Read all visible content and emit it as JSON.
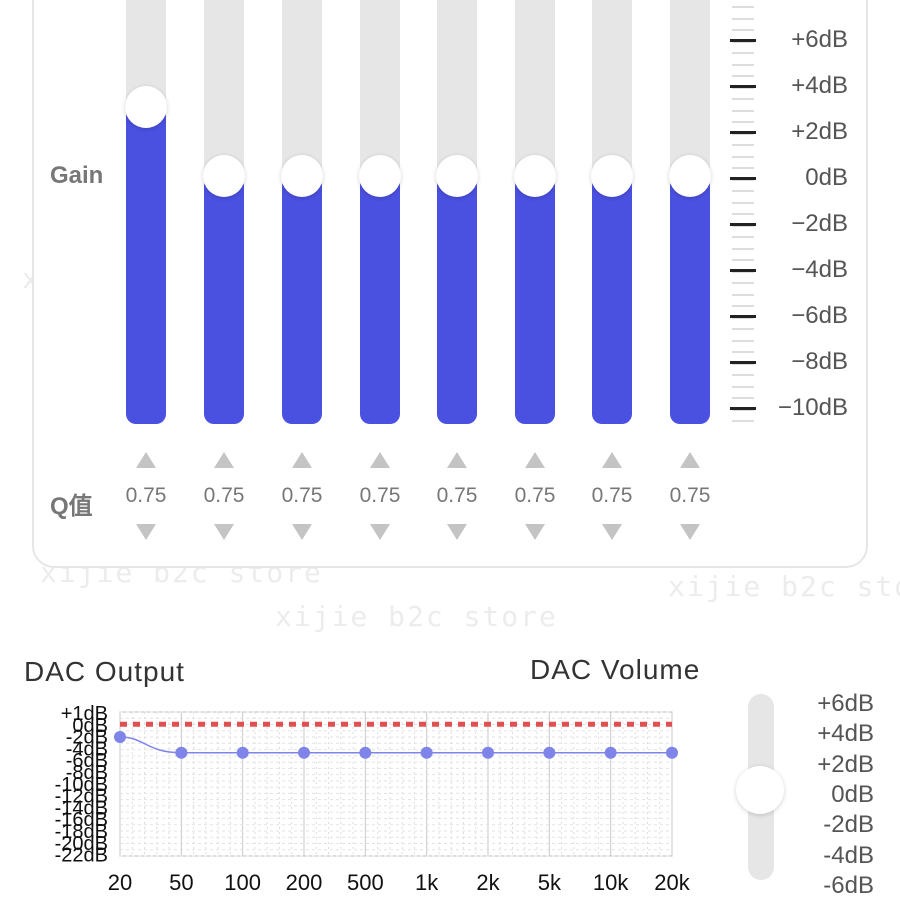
{
  "equalizer": {
    "gain_label": "Gain",
    "q_label": "Q值",
    "scale_labels": [
      "+6dB",
      "+4dB",
      "+2dB",
      "0dB",
      "−2dB",
      "−4dB",
      "−6dB",
      "−8dB",
      "−10dB"
    ],
    "bands": [
      {
        "gain_db": 3,
        "q": "0.75"
      },
      {
        "gain_db": 0,
        "q": "0.75"
      },
      {
        "gain_db": 0,
        "q": "0.75"
      },
      {
        "gain_db": 0,
        "q": "0.75"
      },
      {
        "gain_db": 0,
        "q": "0.75"
      },
      {
        "gain_db": 0,
        "q": "0.75"
      },
      {
        "gain_db": 0,
        "q": "0.75"
      },
      {
        "gain_db": 0,
        "q": "0.75"
      }
    ],
    "accent_color": "#4a50e0"
  },
  "dac_output": {
    "title": "DAC Output",
    "y_labels": [
      "+1dB",
      "0dB",
      "-2dB",
      "-4dB",
      "-6dB",
      "-8dB",
      "-10dB",
      "-12dB",
      "-14dB",
      "-16dB",
      "-18dB",
      "-20dB",
      "-22dB"
    ],
    "x_labels": [
      "20",
      "50",
      "100",
      "200",
      "500",
      "1k",
      "2k",
      "5k",
      "10k",
      "20k"
    ]
  },
  "chart_data": {
    "type": "line",
    "title": "DAC Output",
    "categories": [
      "20",
      "50",
      "100",
      "200",
      "500",
      "1k",
      "2k",
      "5k",
      "10k",
      "20k"
    ],
    "series": [
      {
        "values": [
          -3,
          -5.5,
          -5.5,
          -5.5,
          -5.5,
          -5.5,
          -5.5,
          -5.5,
          -5.5,
          -5.5
        ],
        "color": "#7f84e8"
      },
      {
        "values": [
          0,
          0,
          0,
          0,
          0,
          0,
          0,
          0,
          0,
          0
        ],
        "color": "#e05050",
        "style": "dashed"
      }
    ],
    "ylim": [
      -22,
      1
    ],
    "grid": true
  },
  "dac_volume": {
    "title": "DAC Volume",
    "labels": [
      "+6dB",
      "+4dB",
      "+2dB",
      "0dB",
      "-2dB",
      "-4dB",
      "-6dB"
    ],
    "value_db": 0
  },
  "watermark": "xijie b2c store"
}
